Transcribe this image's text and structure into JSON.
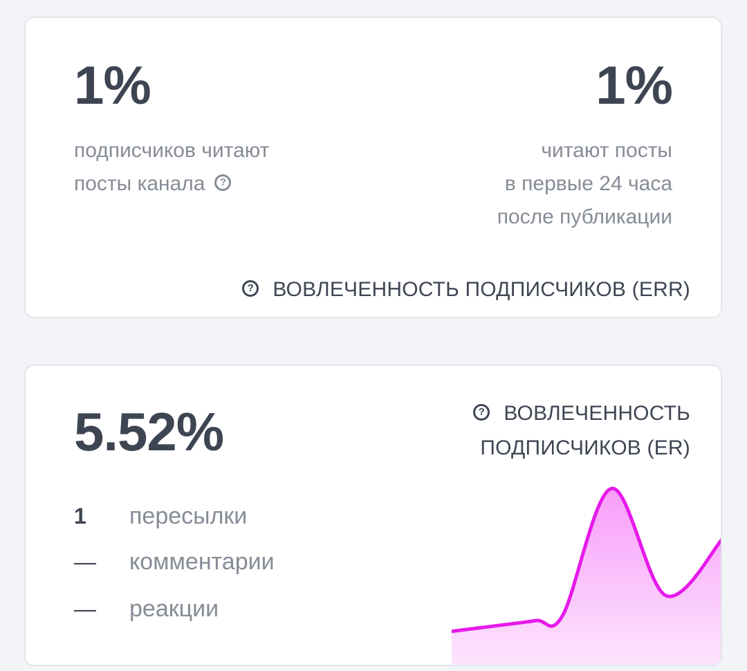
{
  "err_card": {
    "left_value": "1%",
    "left_description": [
      "подписчиков читают",
      "посты канала"
    ],
    "right_value": "1%",
    "right_description": [
      "читают посты",
      "в первые 24 часа",
      "после публикации"
    ],
    "metric_label": "ВОВЛЕЧЕННОСТЬ ПОДПИСЧИКОВ (ERR)",
    "help_icon": "question-circle-icon"
  },
  "er_card": {
    "value": "5.52%",
    "metric_label_lines": [
      "ВОВЛЕЧЕННОСТЬ",
      "ПОДПИСЧИКОВ (ER)"
    ],
    "help_icon": "question-circle-icon",
    "stats": [
      {
        "value": "1",
        "label": "пересылки"
      },
      {
        "value": "—",
        "label": "комментарии"
      },
      {
        "value": "—",
        "label": "реакции"
      }
    ],
    "sparkline": {
      "type": "area",
      "values": [
        0.18,
        0.21,
        0.24,
        0.27,
        0.98,
        0.38,
        0.7
      ],
      "ylim": [
        0,
        1
      ],
      "stroke_color": "#e619ea",
      "fill_top_color": "#f79df9",
      "fill_bottom_color": "#fde6fe"
    }
  }
}
